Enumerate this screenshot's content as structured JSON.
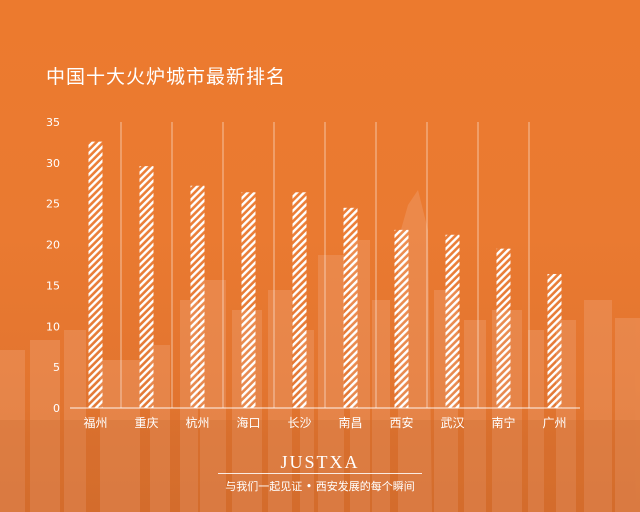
{
  "colors": {
    "background": "#ea7a31",
    "bar_hatch": "#ffffff",
    "text": "#ffffff"
  },
  "chart_data": {
    "type": "bar",
    "title": "中国十大火炉城市最新排名",
    "categories": [
      "福州",
      "重庆",
      "杭州",
      "海口",
      "长沙",
      "南昌",
      "西安",
      "武汉",
      "南宁",
      "广州"
    ],
    "values": [
      32.6,
      29.6,
      27.2,
      26.4,
      26.4,
      24.5,
      21.8,
      21.2,
      19.5,
      16.4
    ],
    "ylim": [
      0,
      35
    ],
    "yticks": [
      0,
      5,
      10,
      15,
      20,
      25,
      30,
      35
    ],
    "xlabel": "",
    "ylabel": "",
    "grid": "vertical separators between categories",
    "legend": "none",
    "bar_style": "white diagonal hatch"
  },
  "footer": {
    "brand": "JUSTXA",
    "slogan": "与我们一起见证 • 西安发展的每个瞬间"
  }
}
